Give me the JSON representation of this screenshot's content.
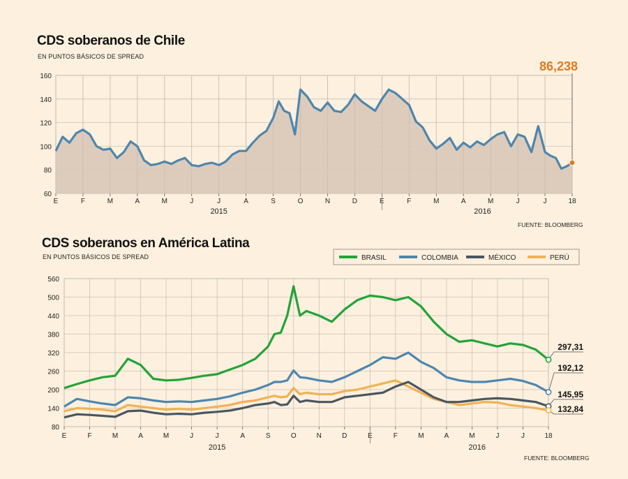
{
  "source_label": "FUENTE: BLOOMBERG",
  "colors": {
    "background": "#fdf0de",
    "plot_bg": "#fdf0de",
    "grid": "#c9c2b8",
    "chile_line": "#4d86ae",
    "chile_fill": "#d9c8b8",
    "highlight": "#e07b1f",
    "brasil": "#23a338",
    "colombia": "#4d86ae",
    "mexico": "#4a5660",
    "peru": "#f0b254"
  },
  "chart_data": [
    {
      "type": "area",
      "title": "CDS soberanos de Chile",
      "subtitle": "EN PUNTOS BÁSICOS DE SPREAD",
      "ylim": [
        60,
        160
      ],
      "yticks": [
        60,
        80,
        100,
        120,
        140,
        160
      ],
      "month_labels": [
        "E",
        "F",
        "M",
        "A",
        "M",
        "J",
        "J",
        "A",
        "S",
        "O",
        "N",
        "D",
        "E",
        "F",
        "M",
        "A",
        "M",
        "J",
        "J",
        "18"
      ],
      "year_labels": [
        "2015",
        "2016"
      ],
      "last_value_label": "86,238",
      "x": [
        0,
        0.25,
        0.5,
        0.75,
        1,
        1.25,
        1.5,
        1.75,
        2,
        2.25,
        2.5,
        2.75,
        3,
        3.25,
        3.5,
        3.75,
        4,
        4.25,
        4.5,
        4.75,
        5,
        5.25,
        5.5,
        5.75,
        6,
        6.25,
        6.5,
        6.75,
        7,
        7.25,
        7.5,
        7.75,
        8,
        8.2,
        8.4,
        8.6,
        8.8,
        9,
        9.25,
        9.5,
        9.75,
        10,
        10.25,
        10.5,
        10.75,
        11,
        11.25,
        11.5,
        11.75,
        12,
        12.25,
        12.5,
        12.75,
        13,
        13.25,
        13.5,
        13.75,
        14,
        14.25,
        14.5,
        14.75,
        15,
        15.25,
        15.5,
        15.75,
        16,
        16.25,
        16.5,
        16.75,
        17,
        17.25,
        17.5,
        17.75,
        18,
        18.2,
        18.4,
        18.6,
        18.8,
        19
      ],
      "values": [
        96,
        108,
        103,
        111,
        114,
        110,
        100,
        97,
        98,
        90,
        95,
        104,
        100,
        88,
        84,
        85,
        87,
        85,
        88,
        90,
        84,
        83,
        85,
        86,
        84,
        87,
        93,
        96,
        96,
        103,
        109,
        113,
        124,
        138,
        130,
        128,
        110,
        148,
        142,
        133,
        130,
        137,
        130,
        129,
        135,
        144,
        138,
        134,
        130,
        140,
        148,
        145,
        140,
        135,
        121,
        116,
        105,
        98,
        102,
        107,
        97,
        103,
        99,
        104,
        101,
        106,
        110,
        112,
        100,
        110,
        108,
        95,
        117,
        95,
        92,
        90,
        81,
        83,
        86
      ]
    },
    {
      "type": "line",
      "title": "CDS soberanos en América Latina",
      "subtitle": "EN PUNTOS BÁSICOS DE SPREAD",
      "ylim": [
        80,
        560
      ],
      "yticks": [
        80,
        140,
        200,
        260,
        320,
        380,
        440,
        500,
        560
      ],
      "month_labels": [
        "E",
        "F",
        "M",
        "A",
        "M",
        "J",
        "J",
        "A",
        "S",
        "O",
        "N",
        "D",
        "E",
        "F",
        "M",
        "A",
        "M",
        "J",
        "J",
        "18"
      ],
      "year_labels": [
        "2015",
        "2016"
      ],
      "x": [
        0,
        0.5,
        1,
        1.5,
        2,
        2.5,
        3,
        3.5,
        4,
        4.5,
        5,
        5.5,
        6,
        6.5,
        7,
        7.5,
        8,
        8.25,
        8.5,
        8.75,
        9,
        9.25,
        9.5,
        10,
        10.5,
        11,
        11.5,
        12,
        12.5,
        13,
        13.5,
        14,
        14.5,
        15,
        15.5,
        16,
        16.5,
        17,
        17.5,
        18,
        18.5,
        19
      ],
      "series": [
        {
          "name": "BRASIL",
          "end_label": "297,31",
          "values": [
            205,
            218,
            230,
            240,
            245,
            300,
            280,
            235,
            230,
            232,
            238,
            245,
            250,
            265,
            280,
            300,
            340,
            380,
            385,
            440,
            535,
            440,
            455,
            440,
            420,
            460,
            490,
            505,
            500,
            490,
            500,
            470,
            420,
            380,
            355,
            360,
            350,
            340,
            350,
            345,
            330,
            297
          ]
        },
        {
          "name": "COLOMBIA",
          "end_label": "192,12",
          "values": [
            145,
            170,
            162,
            155,
            150,
            175,
            172,
            165,
            160,
            162,
            160,
            165,
            170,
            178,
            190,
            200,
            215,
            225,
            225,
            230,
            262,
            240,
            238,
            230,
            225,
            240,
            260,
            280,
            305,
            300,
            320,
            290,
            270,
            240,
            230,
            225,
            225,
            230,
            235,
            228,
            215,
            192
          ]
        },
        {
          "name": "MÉXICO",
          "end_label": "145,95",
          "values": [
            110,
            120,
            118,
            115,
            112,
            130,
            132,
            125,
            120,
            122,
            120,
            125,
            128,
            132,
            140,
            150,
            155,
            160,
            150,
            152,
            180,
            160,
            165,
            160,
            160,
            175,
            180,
            185,
            190,
            210,
            225,
            200,
            175,
            160,
            160,
            165,
            170,
            172,
            170,
            165,
            160,
            146
          ]
        },
        {
          "name": "PERÚ",
          "end_label": "132,84",
          "values": [
            130,
            140,
            138,
            135,
            130,
            150,
            145,
            140,
            135,
            138,
            135,
            140,
            145,
            150,
            160,
            165,
            175,
            180,
            175,
            178,
            205,
            185,
            190,
            185,
            185,
            195,
            200,
            210,
            220,
            230,
            210,
            190,
            170,
            160,
            150,
            155,
            160,
            158,
            150,
            145,
            140,
            133
          ]
        }
      ]
    }
  ]
}
